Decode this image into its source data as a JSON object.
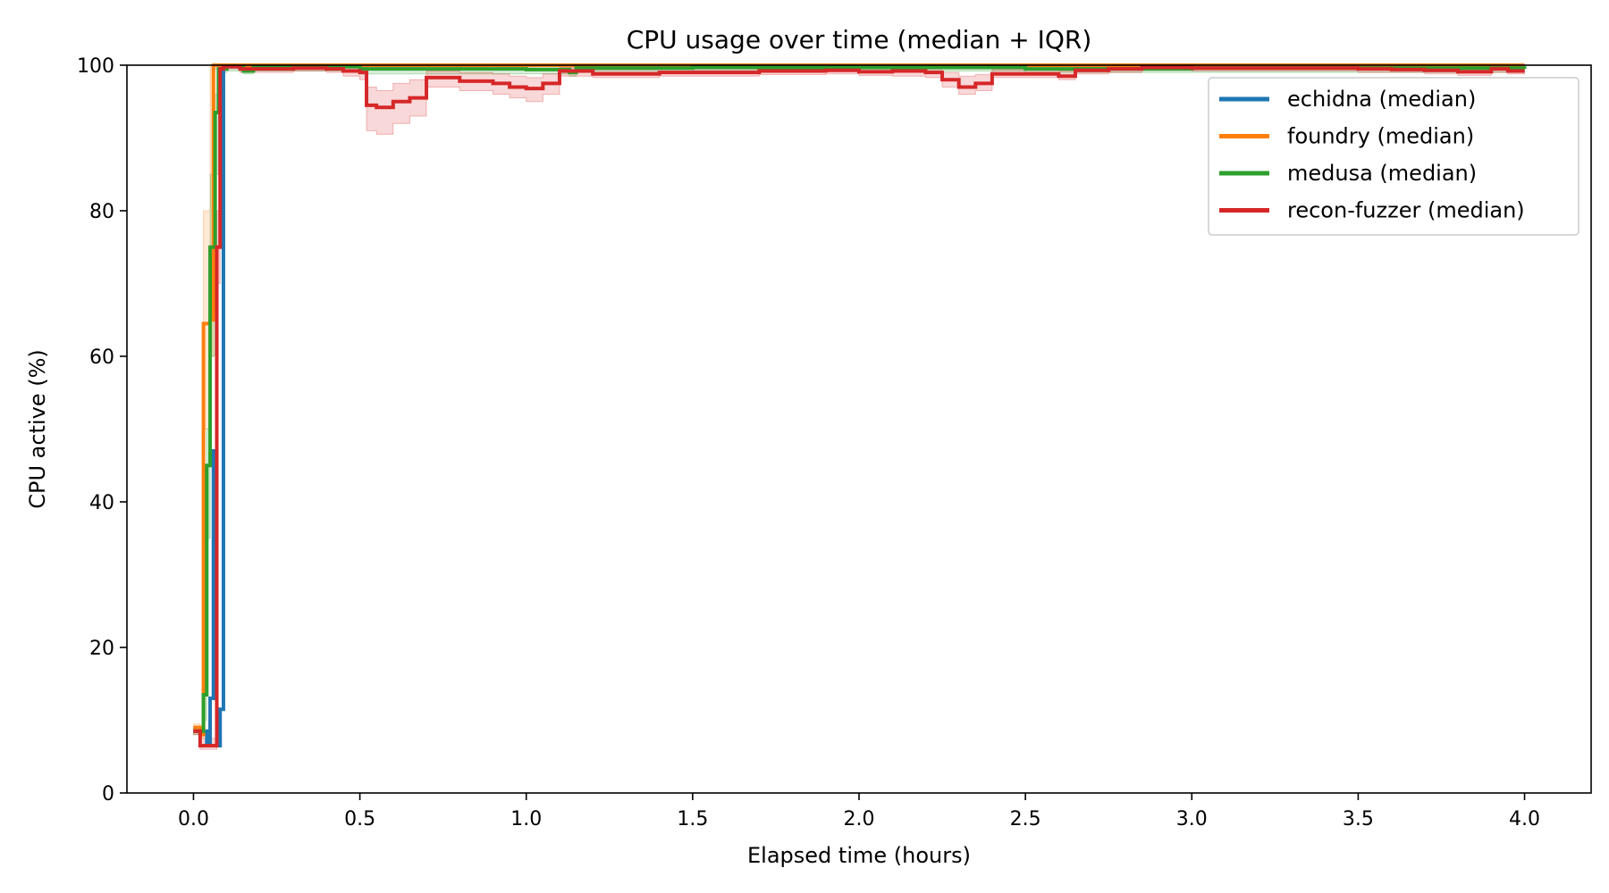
{
  "chart_data": {
    "type": "line",
    "title": "CPU usage over time (median + IQR)",
    "xlabel": "Elapsed time (hours)",
    "ylabel": "CPU active (%)",
    "xlim": [
      -0.2,
      4.2
    ],
    "ylim": [
      0,
      100
    ],
    "xticks": [
      0.0,
      0.5,
      1.0,
      1.5,
      2.0,
      2.5,
      3.0,
      3.5,
      4.0
    ],
    "xtick_labels": [
      "0.0",
      "0.5",
      "1.0",
      "1.5",
      "2.0",
      "2.5",
      "3.0",
      "3.5",
      "4.0"
    ],
    "yticks": [
      0,
      20,
      40,
      60,
      80,
      100
    ],
    "ytick_labels": [
      "0",
      "20",
      "40",
      "60",
      "80",
      "100"
    ],
    "grid": false,
    "legend_position": "top-right",
    "step": true,
    "series": [
      {
        "name": "echidna (median)",
        "color": "#1f77b4",
        "x": [
          0.0,
          0.04,
          0.05,
          0.06,
          0.07,
          0.08,
          0.09,
          0.1,
          0.5,
          1.0,
          2.0,
          3.0,
          4.0
        ],
        "y": [
          8.5,
          7.0,
          13.0,
          47.0,
          6.5,
          11.5,
          99.5,
          100.0,
          100.0,
          100.0,
          100.0,
          100.0,
          100.0
        ]
      },
      {
        "name": "foundry (median)",
        "color": "#ff7f0e",
        "x": [
          0.0,
          0.02,
          0.03,
          0.05,
          0.06,
          0.08,
          0.5,
          1.0,
          2.0,
          3.0,
          4.0
        ],
        "y": [
          9.0,
          8.0,
          64.5,
          65.0,
          100.0,
          100.0,
          100.0,
          100.0,
          100.0,
          100.0,
          100.0
        ],
        "iqr_low": [
          8.5,
          7.5,
          50.0,
          60.0,
          99.5,
          99.8,
          99.8,
          99.8,
          99.8,
          99.8,
          99.8
        ],
        "iqr_high": [
          9.5,
          9.0,
          80.0,
          100.0,
          100.0,
          100.0,
          100.0,
          100.0,
          100.0,
          100.0,
          100.0
        ]
      },
      {
        "name": "medusa (median)",
        "color": "#2ca02c",
        "x": [
          0.0,
          0.03,
          0.04,
          0.05,
          0.065,
          0.075,
          0.1,
          0.15,
          0.18,
          0.5,
          1.0,
          1.13,
          1.15,
          1.5,
          2.0,
          2.5,
          3.0,
          4.0
        ],
        "y": [
          8.5,
          13.5,
          45.0,
          75.0,
          93.5,
          99.5,
          99.8,
          99.2,
          99.8,
          99.5,
          99.4,
          99.0,
          99.6,
          99.7,
          99.7,
          99.5,
          99.6,
          99.5
        ],
        "iqr_low": [
          8.0,
          10.0,
          35.0,
          60.0,
          85.0,
          99.0,
          99.2,
          98.8,
          99.2,
          98.8,
          98.8,
          98.5,
          99.0,
          99.2,
          99.2,
          99.0,
          99.0,
          99.0
        ],
        "iqr_high": [
          9.0,
          15.0,
          50.0,
          85.0,
          96.0,
          100.0,
          100.0,
          100.0,
          100.0,
          100.0,
          100.0,
          100.0,
          100.0,
          100.0,
          100.0,
          100.0,
          100.0,
          100.0
        ]
      },
      {
        "name": "recon-fuzzer (median)",
        "color": "#d62728",
        "x": [
          0.0,
          0.02,
          0.06,
          0.07,
          0.08,
          0.09,
          0.14,
          0.3,
          0.4,
          0.45,
          0.5,
          0.52,
          0.55,
          0.6,
          0.65,
          0.7,
          0.72,
          0.8,
          0.9,
          0.95,
          1.0,
          1.05,
          1.1,
          1.2,
          1.3,
          1.4,
          1.5,
          1.7,
          1.8,
          1.9,
          2.0,
          2.1,
          2.2,
          2.25,
          2.3,
          2.35,
          2.4,
          2.6,
          2.65,
          2.75,
          2.85,
          3.0,
          3.5,
          3.6,
          3.7,
          3.8,
          3.9,
          3.95,
          4.0
        ],
        "y": [
          8.5,
          6.5,
          6.5,
          75.0,
          99.5,
          99.8,
          99.5,
          99.6,
          99.5,
          99.2,
          99.0,
          94.5,
          94.2,
          95.0,
          95.5,
          98.3,
          98.3,
          97.8,
          97.5,
          97.0,
          96.8,
          97.5,
          99.2,
          98.8,
          98.8,
          99.0,
          99.0,
          99.2,
          99.2,
          99.3,
          99.1,
          99.2,
          99.0,
          98.0,
          97.0,
          97.5,
          98.8,
          98.5,
          99.3,
          99.5,
          99.7,
          99.6,
          99.5,
          99.4,
          99.3,
          99.1,
          99.5,
          99.2,
          99.2
        ],
        "iqr_low": [
          8.0,
          6.0,
          6.0,
          70.0,
          99.0,
          99.5,
          99.0,
          99.2,
          99.0,
          98.5,
          98.0,
          91.0,
          90.5,
          92.0,
          93.0,
          97.0,
          97.0,
          96.5,
          96.0,
          95.5,
          95.0,
          96.0,
          98.5,
          98.3,
          98.3,
          98.5,
          98.5,
          98.7,
          98.7,
          98.8,
          98.6,
          98.5,
          98.3,
          97.0,
          96.0,
          96.5,
          98.3,
          98.0,
          98.8,
          99.0,
          99.3,
          99.2,
          99.0,
          99.0,
          98.8,
          98.6,
          99.0,
          98.8,
          98.8
        ],
        "iqr_high": [
          9.0,
          7.5,
          7.5,
          80.0,
          100.0,
          100.0,
          100.0,
          100.0,
          100.0,
          99.8,
          99.6,
          97.0,
          96.5,
          97.5,
          98.0,
          99.2,
          99.2,
          99.0,
          98.8,
          98.5,
          98.3,
          98.8,
          99.7,
          99.4,
          99.4,
          99.5,
          99.5,
          99.6,
          99.6,
          99.7,
          99.5,
          99.6,
          99.5,
          99.0,
          98.5,
          98.7,
          99.4,
          99.2,
          99.8,
          99.9,
          100.0,
          100.0,
          99.9,
          99.8,
          99.7,
          99.5,
          99.9,
          99.6,
          99.6
        ]
      }
    ]
  }
}
